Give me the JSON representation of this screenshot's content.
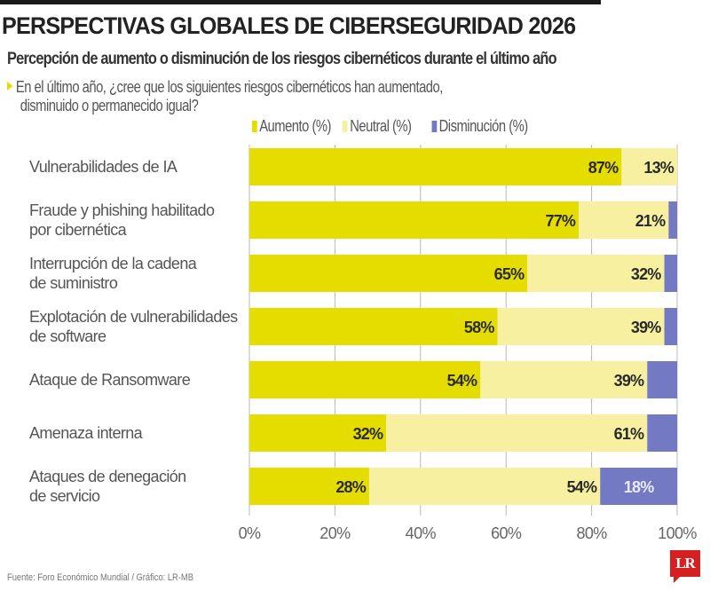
{
  "header": {
    "title": "PERSPECTIVAS GLOBALES DE CIBERSEGURIDAD 2026",
    "subtitle": "Percepción de aumento o disminución de los riesgos cibernéticos durante el último año",
    "question_line1": "En el último año, ¿cree que los siguientes riesgos cibernéticos han aumentado,",
    "question_line2": "disminuido o permanecido igual?"
  },
  "colors": {
    "aumento": "#e5dc00",
    "neutral": "#f6f0a0",
    "disminucion": "#7479c4",
    "gridline": "#b8b8b8"
  },
  "chart_data": {
    "type": "bar",
    "orientation": "horizontal",
    "stacked": true,
    "title": "PERSPECTIVAS GLOBALES DE CIBERSEGURIDAD 2026",
    "subtitle": "Percepción de aumento o disminución de los riesgos cibernéticos durante el último año",
    "xlabel": "",
    "ylabel": "",
    "xlim": [
      0,
      100
    ],
    "xticks": [
      "0%",
      "20%",
      "40%",
      "60%",
      "80%",
      "100%"
    ],
    "grid": true,
    "legend_position": "top-right",
    "categories": [
      [
        "Vulnerabilidades de IA"
      ],
      [
        "Fraude y phishing habilitado",
        "por cibernética"
      ],
      [
        "Interrupción de la cadena",
        "de suministro"
      ],
      [
        "Explotación de vulnerabilidades",
        "de software"
      ],
      [
        "Ataque de Ransomware"
      ],
      [
        "Amenaza interna"
      ],
      [
        "Ataques de denegación",
        "de servicio"
      ]
    ],
    "series": [
      {
        "name": "Aumento (%)",
        "key": "aumento",
        "values": [
          87,
          77,
          65,
          58,
          54,
          32,
          28
        ],
        "labels": [
          "87%",
          "77%",
          "65%",
          "58%",
          "54%",
          "32%",
          "28%"
        ]
      },
      {
        "name": "Neutral (%)",
        "key": "neutral",
        "values": [
          13,
          21,
          32,
          39,
          39,
          61,
          54
        ],
        "labels": [
          "13%",
          "21%",
          "32%",
          "39%",
          "39%",
          "61%",
          "54%"
        ]
      },
      {
        "name": "Disminución (%)",
        "key": "disminucion",
        "values": [
          0.5,
          2,
          3,
          3,
          7,
          7,
          18
        ],
        "labels": [
          "",
          "",
          "",
          "",
          "",
          "",
          "18%"
        ]
      }
    ]
  },
  "legend": {
    "aumento": "Aumento (%)",
    "neutral": "Neutral (%)",
    "disminucion": "Disminución (%)"
  },
  "footer": {
    "source": "Fuente:  Foro Económico Mundial  / Gráfico: LR-MB"
  },
  "logo": {
    "text": "LR"
  }
}
